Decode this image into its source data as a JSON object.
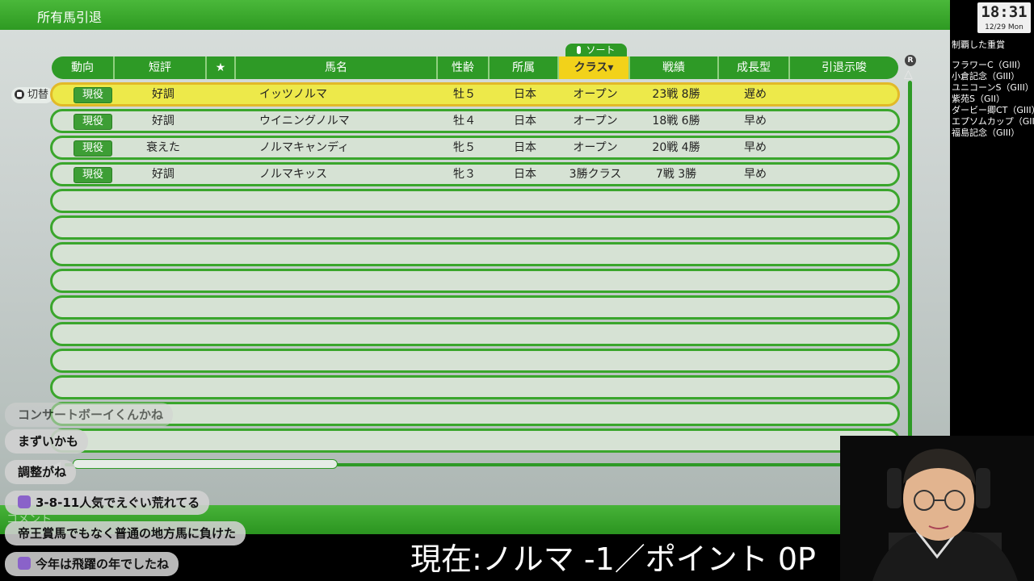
{
  "screen": {
    "title": "所有馬引退"
  },
  "sort": {
    "label": "ソート"
  },
  "switch_label": "切替",
  "table": {
    "headers": [
      "動向",
      "短評",
      "★",
      "馬名",
      "性齢",
      "所属",
      "クラス▾",
      "戦績",
      "成長型",
      "引退示唆"
    ],
    "sorted_column": "クラス",
    "rows": [
      {
        "status": "現役",
        "review": "好調",
        "star": "",
        "name": "イッツノルマ",
        "sex_age": "牡５",
        "affiliation": "日本",
        "class": "オープン",
        "record": "23戦 8勝",
        "growth": "遅め",
        "retire_hint": ""
      },
      {
        "status": "現役",
        "review": "好調",
        "star": "",
        "name": "ウイニングノルマ",
        "sex_age": "牡４",
        "affiliation": "日本",
        "class": "オープン",
        "record": "18戦 6勝",
        "growth": "早め",
        "retire_hint": ""
      },
      {
        "status": "現役",
        "review": "衰えた",
        "star": "",
        "name": "ノルマキャンディ",
        "sex_age": "牝５",
        "affiliation": "日本",
        "class": "オープン",
        "record": "20戦 4勝",
        "growth": "早め",
        "retire_hint": ""
      },
      {
        "status": "現役",
        "review": "好調",
        "star": "",
        "name": "ノルマキッス",
        "sex_age": "牝３",
        "affiliation": "日本",
        "class": "3勝クラス",
        "record": "7戦 3勝",
        "growth": "早め",
        "retire_hint": ""
      }
    ],
    "empty_rows": 10
  },
  "scroll": {
    "r_button": "R"
  },
  "bottom_bar": {
    "comment_label": "コメント"
  },
  "clock": {
    "time": "18:31",
    "date": "12/29 Mon"
  },
  "overlay": {
    "titles_heading": "制覇した重賞",
    "titles": [
      "フラワーC（GIII）",
      "小倉記念（GIII）",
      "ユニコーンS（GIII）",
      "紫苑S（GII）",
      "ダービー卿CT（GIII）",
      "エプソムカップ（GIII）",
      "福島記念（GIII）"
    ]
  },
  "chat": {
    "messages": [
      {
        "text": "コンサートボーイくんかね",
        "avatar": false
      },
      {
        "text": "まずいかも",
        "avatar": false
      },
      {
        "text": "調整がね",
        "avatar": false
      },
      {
        "text": "3-8-11人気でえぐい荒れてる",
        "avatar": true
      },
      {
        "text": "帝王賞馬でもなく普通の地方馬に負けた",
        "avatar": false
      },
      {
        "text": "今年は飛躍の年でしたね",
        "avatar": true
      }
    ]
  },
  "status_line": "現在:ノルマ -1／ポイント 0P",
  "colors": {
    "accent_green": "#2e9a26",
    "selected_row": "#ede94a",
    "sort_highlight": "#f2d21a"
  }
}
